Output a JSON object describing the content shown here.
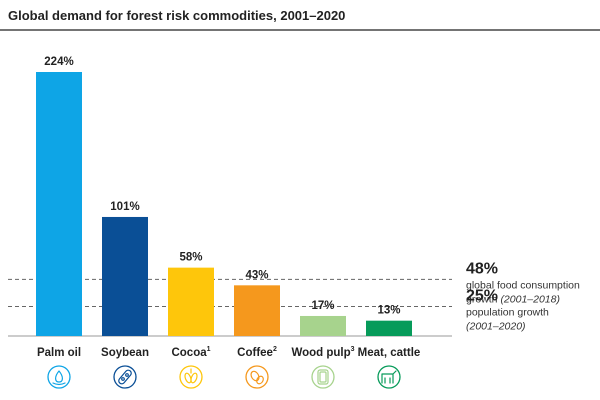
{
  "chart_data": {
    "type": "bar",
    "title": "Global demand for forest risk commodities, 2001–2020",
    "categories": [
      "Palm oil",
      "Soybean",
      "Cocoa",
      "Coffee",
      "Wood pulp",
      "Meat, cattle"
    ],
    "footnote_marks": [
      "",
      "",
      "1",
      "2",
      "3",
      ""
    ],
    "values": [
      224,
      101,
      58,
      43,
      17,
      13
    ],
    "value_labels": [
      "224%",
      "101%",
      "58%",
      "43%",
      "17%",
      "13%"
    ],
    "unit": "%",
    "ylim": [
      0,
      224
    ],
    "colors": [
      "#0ea5e6",
      "#0a4f96",
      "#fec60b",
      "#f5981d",
      "#a7d38d",
      "#079b5a"
    ],
    "icons": [
      "drop-icon",
      "soybean-icon",
      "cocoa-icon",
      "coffee-icon",
      "wood-pulp-icon",
      "cattle-icon"
    ],
    "reference_lines": [
      {
        "value": 48,
        "big_label": "48%",
        "line1": "global food consumption",
        "line2_plain": "growth ",
        "line2_italic": "(2001–2018)"
      },
      {
        "value": 25,
        "big_label": "25%",
        "line1": "population growth",
        "line2_plain": "",
        "line2_italic": "(2001–2020)"
      }
    ]
  }
}
